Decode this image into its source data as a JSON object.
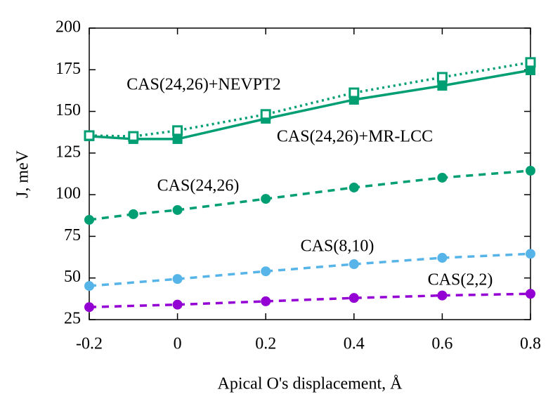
{
  "chart_data": {
    "type": "line",
    "xlabel": "Apical O's displacement, Å",
    "ylabel": "J, meV",
    "xlim": [
      -0.2,
      0.8
    ],
    "xticks": [
      -0.2,
      0,
      0.2,
      0.4,
      0.6,
      0.8
    ],
    "ylim": [
      25,
      200
    ],
    "yticks": [
      25,
      50,
      75,
      100,
      125,
      150,
      175,
      200
    ],
    "series": [
      {
        "name": "CAS(2,2)",
        "color": "#9400d3",
        "style": "dashed",
        "marker": "circle",
        "x": [
          -0.2,
          0,
          0.2,
          0.4,
          0.6,
          0.8
        ],
        "values": [
          32.5,
          34,
          36,
          38,
          39.5,
          40.5
        ]
      },
      {
        "name": "CAS(8,10)",
        "color": "#56b4e9",
        "style": "dashed",
        "marker": "circle",
        "x": [
          -0.2,
          0,
          0.2,
          0.4,
          0.6,
          0.8
        ],
        "values": [
          45.2,
          49.4,
          54,
          58.3,
          62.1,
          64.5
        ]
      },
      {
        "name": "CAS(24,26)",
        "color": "#009e73",
        "style": "dashed",
        "marker": "circle",
        "x": [
          -0.2,
          -0.1,
          0,
          0.2,
          0.4,
          0.6,
          0.8
        ],
        "values": [
          84.9,
          88.3,
          90.8,
          97.5,
          104.3,
          110.2,
          114.4
        ]
      },
      {
        "name": "CAS(24,26)+MR-LCC",
        "color": "#009e73",
        "style": "solid",
        "marker": "square",
        "x": [
          -0.2,
          -0.1,
          0,
          0.2,
          0.4,
          0.6,
          0.8
        ],
        "values": [
          135.1,
          133.4,
          133.4,
          145.6,
          157,
          165.4,
          174.7
        ]
      },
      {
        "name": "CAS(24,26)+NEVPT2",
        "color": "#009e73",
        "style": "dotted",
        "marker": "open-square",
        "x": [
          -0.2,
          -0.1,
          0,
          0.2,
          0.4,
          0.6,
          0.8
        ],
        "values": [
          135.5,
          135,
          138.5,
          148.2,
          161.2,
          170.5,
          179.4
        ]
      }
    ]
  }
}
